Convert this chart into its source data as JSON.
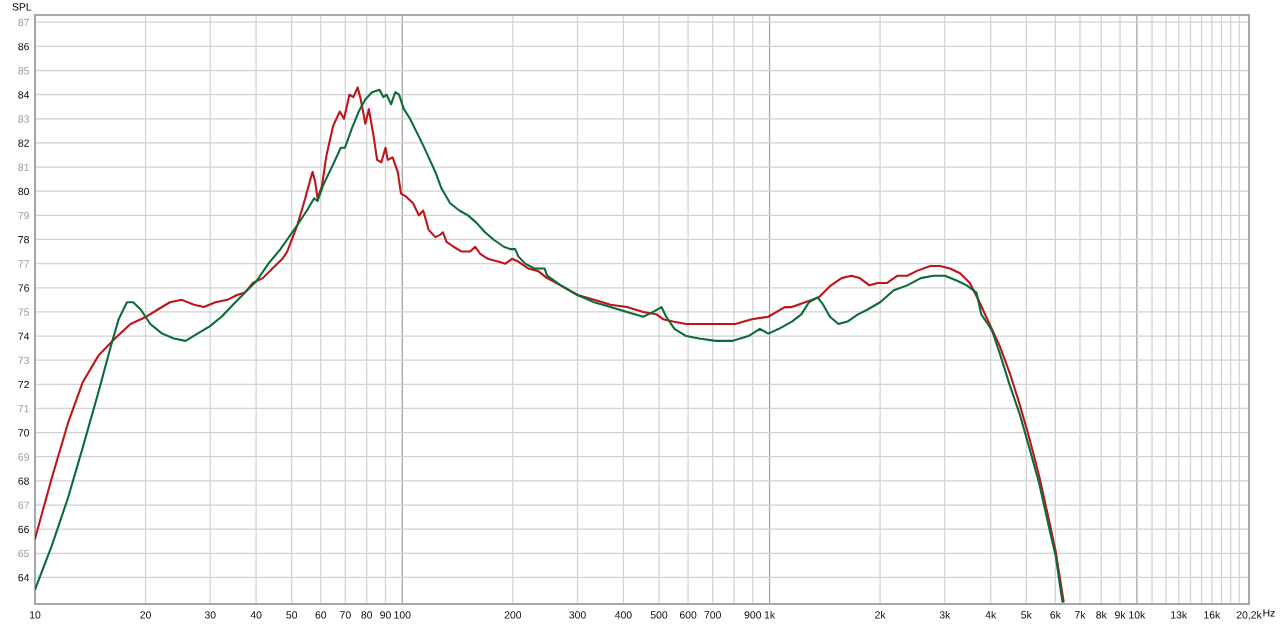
{
  "chart_data": {
    "type": "line",
    "ylabel": "SPL",
    "xlabel": "Hz",
    "log": "x",
    "xlim": [
      10,
      20200
    ],
    "ylim": [
      62.9,
      87.3
    ],
    "xticks": [
      10,
      20,
      30,
      40,
      50,
      60,
      70,
      80,
      90,
      100,
      200,
      300,
      400,
      500,
      600,
      700,
      {
        "value": 800,
        "label": null
      },
      900,
      {
        "value": 1000,
        "label": "1k"
      },
      {
        "value": 2000,
        "label": "2k"
      },
      {
        "value": 3000,
        "label": "3k"
      },
      {
        "value": 4000,
        "label": "4k"
      },
      {
        "value": 5000,
        "label": "5k"
      },
      {
        "value": 6000,
        "label": "6k"
      },
      {
        "value": 7000,
        "label": "7k"
      },
      {
        "value": 8000,
        "label": "8k"
      },
      {
        "value": 9000,
        "label": "9k"
      },
      {
        "value": 10000,
        "label": "10k"
      },
      {
        "value": 11000,
        "label": null
      },
      {
        "value": 12000,
        "label": null
      },
      {
        "value": 13000,
        "label": "13k"
      },
      {
        "value": 14000,
        "label": null
      },
      {
        "value": 15000,
        "label": null
      },
      {
        "value": 16000,
        "label": "16k"
      },
      {
        "value": 17000,
        "label": null
      },
      {
        "value": 18000,
        "label": null
      },
      {
        "value": 19000,
        "label": null
      },
      {
        "value": 20200,
        "label": "20,2k"
      }
    ],
    "yticks": [
      64,
      65,
      66,
      67,
      68,
      69,
      70,
      71,
      72,
      73,
      74,
      75,
      76,
      77,
      78,
      79,
      80,
      81,
      82,
      83,
      84,
      85,
      86,
      87
    ],
    "grid": true,
    "marker": "none",
    "line_style": "solid",
    "series": [
      {
        "color": "#c0141c",
        "x": [
          10,
          11.1,
          12.3,
          13.5,
          14.9,
          16.5,
          18.2,
          20.1,
          21.6,
          23.3,
          25.1,
          27.1,
          28.8,
          31,
          33.4,
          35.5,
          37.3,
          39.2,
          41.7,
          44.3,
          47.2,
          48.6,
          51.8,
          54.4,
          56.2,
          57,
          57.9,
          58.8,
          60.4,
          62.2,
          64.8,
          67.6,
          69.4,
          71.8,
          73.6,
          75.6,
          77.1,
          79.3,
          81.1,
          83.5,
          85.4,
          87.7,
          90,
          91.3,
          94.1,
          97.2,
          99.2,
          102,
          107,
          111,
          114,
          118,
          123,
          127,
          129,
          132,
          138,
          145,
          153,
          158,
          163,
          171,
          181,
          191,
          199,
          206,
          220,
          234,
          248,
          270,
          300,
          333,
          369,
          409,
          453,
          492,
          513,
          546,
          593,
          656,
          728,
          807,
          895,
          992,
          1100,
          1150,
          1250,
          1360,
          1470,
          1570,
          1670,
          1760,
          1870,
          1970,
          2090,
          2230,
          2370,
          2520,
          2740,
          2910,
          3100,
          3300,
          3510,
          3730,
          3970,
          4230,
          4500,
          4790,
          5090,
          5420,
          5760,
          6010,
          6320
        ],
        "values": [
          65.6,
          68.1,
          70.4,
          72.1,
          73.2,
          73.9,
          74.5,
          74.8,
          75.1,
          75.4,
          75.5,
          75.3,
          75.2,
          75.4,
          75.5,
          75.7,
          75.8,
          76.2,
          76.4,
          76.8,
          77.2,
          77.5,
          78.6,
          79.7,
          80.5,
          80.8,
          80.4,
          79.7,
          80.2,
          81.5,
          82.7,
          83.3,
          83.0,
          84.0,
          83.9,
          84.3,
          83.8,
          82.8,
          83.4,
          82.3,
          81.3,
          81.2,
          81.8,
          81.3,
          81.4,
          80.8,
          79.9,
          79.8,
          79.5,
          79.0,
          79.2,
          78.4,
          78.1,
          78.2,
          78.3,
          77.9,
          77.7,
          77.5,
          77.5,
          77.7,
          77.4,
          77.2,
          77.1,
          77.0,
          77.2,
          77.1,
          76.8,
          76.7,
          76.4,
          76.1,
          75.7,
          75.5,
          75.3,
          75.2,
          75.0,
          74.9,
          74.7,
          74.6,
          74.5,
          74.5,
          74.5,
          74.5,
          74.7,
          74.8,
          75.2,
          75.2,
          75.4,
          75.6,
          76.1,
          76.4,
          76.5,
          76.4,
          76.1,
          76.2,
          76.2,
          76.5,
          76.5,
          76.7,
          76.9,
          76.9,
          76.8,
          76.6,
          76.2,
          75.4,
          74.5,
          73.6,
          72.5,
          71.2,
          69.8,
          68.2,
          66.4,
          65.1,
          63.0
        ]
      },
      {
        "color": "#0b6b3b",
        "x": [
          10,
          11.1,
          12.3,
          13.5,
          14.9,
          16.1,
          16.9,
          17.8,
          18.5,
          19.4,
          20.6,
          22.2,
          23.9,
          25.7,
          27.7,
          29.9,
          32.2,
          34.6,
          37.3,
          40.2,
          43.2,
          46.6,
          48.6,
          51.8,
          55,
          57.5,
          58.8,
          61.1,
          64.3,
          68,
          69.8,
          72.9,
          76.1,
          79.3,
          82.7,
          86.7,
          88.8,
          90.6,
          93.2,
          95.7,
          98,
          101,
          105,
          109,
          114,
          118,
          123,
          128,
          135,
          143,
          151,
          159,
          168,
          177,
          189,
          197,
          203,
          207,
          216,
          229,
          244,
          248,
          270,
          300,
          333,
          369,
          409,
          453,
          482,
          508,
          523,
          551,
          593,
          643,
          713,
          790,
          876,
          941,
          992,
          1060,
          1150,
          1220,
          1280,
          1350,
          1400,
          1460,
          1540,
          1630,
          1740,
          1850,
          2000,
          2180,
          2370,
          2580,
          2790,
          3000,
          3230,
          3440,
          3660,
          3770,
          3930,
          4040,
          4230,
          4500,
          4790,
          5090,
          5420,
          5760,
          6010,
          6270
        ],
        "values": [
          63.5,
          65.3,
          67.3,
          69.4,
          71.7,
          73.6,
          74.7,
          75.4,
          75.4,
          75.1,
          74.5,
          74.1,
          73.9,
          73.8,
          74.1,
          74.4,
          74.8,
          75.3,
          75.8,
          76.3,
          77.0,
          77.6,
          78.0,
          78.6,
          79.2,
          79.7,
          79.6,
          80.3,
          81.0,
          81.8,
          81.8,
          82.6,
          83.3,
          83.8,
          84.1,
          84.2,
          83.9,
          84.0,
          83.6,
          84.1,
          84.0,
          83.4,
          83.0,
          82.5,
          81.9,
          81.4,
          80.8,
          80.1,
          79.5,
          79.2,
          79.0,
          78.7,
          78.3,
          78.0,
          77.7,
          77.6,
          77.6,
          77.3,
          77.0,
          76.8,
          76.8,
          76.5,
          76.1,
          75.7,
          75.4,
          75.2,
          75.0,
          74.8,
          75.0,
          75.2,
          74.8,
          74.3,
          74.0,
          73.9,
          73.8,
          73.8,
          74.0,
          74.3,
          74.1,
          74.3,
          74.6,
          74.9,
          75.4,
          75.6,
          75.3,
          74.8,
          74.5,
          74.6,
          74.9,
          75.1,
          75.4,
          75.9,
          76.1,
          76.4,
          76.5,
          76.5,
          76.3,
          76.1,
          75.8,
          74.9,
          74.5,
          74.2,
          73.3,
          72.0,
          70.8,
          69.4,
          67.9,
          66.1,
          64.9,
          63.0
        ]
      }
    ]
  }
}
